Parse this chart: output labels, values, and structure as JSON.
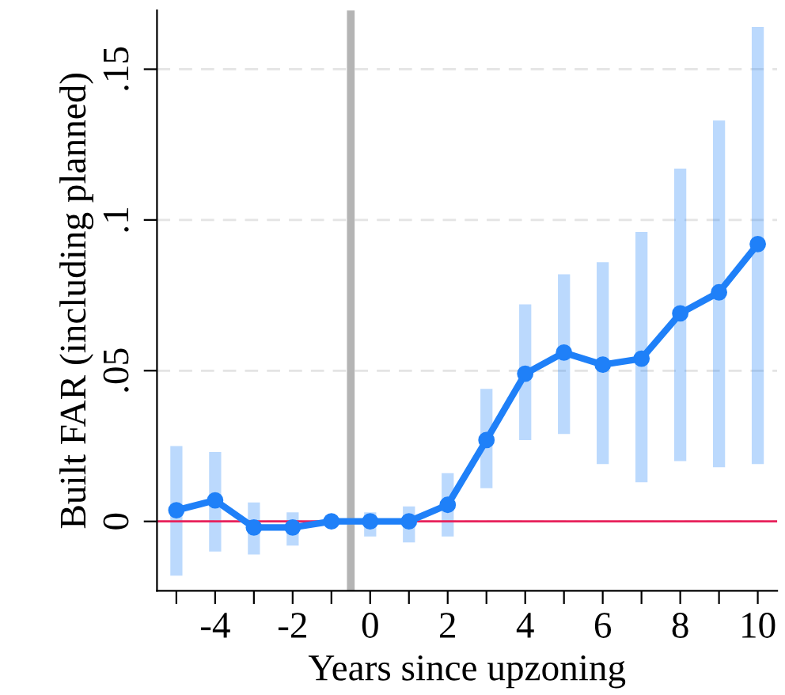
{
  "chart_data": {
    "type": "line",
    "xlabel": "Years since upzoning",
    "ylabel": "Built FAR (including planned)",
    "x": [
      -5,
      -4,
      -3,
      -2,
      -1,
      0,
      1,
      2,
      3,
      4,
      5,
      6,
      7,
      8,
      9,
      10
    ],
    "series": [
      {
        "color": "#1f80f8",
        "values": [
          0.0037,
          0.007,
          -0.002,
          -0.002,
          0,
          0,
          0,
          0.0055,
          0.027,
          0.049,
          0.056,
          0.052,
          0.054,
          0.069,
          0.076,
          0.092
        ],
        "errors": [
          [
            -0.018,
            0.025
          ],
          [
            -0.01,
            0.023
          ],
          [
            -0.011,
            0.0063
          ],
          [
            -0.008,
            0.003
          ],
          null,
          [
            -0.005,
            0.003
          ],
          [
            -0.007,
            0.005
          ],
          [
            -0.005,
            0.016
          ],
          [
            0.011,
            0.044
          ],
          [
            0.027,
            0.072
          ],
          [
            0.029,
            0.082
          ],
          [
            0.019,
            0.086
          ],
          [
            0.013,
            0.096
          ],
          [
            0.02,
            0.117
          ],
          [
            0.018,
            0.133
          ],
          [
            0.019,
            0.164
          ]
        ]
      }
    ],
    "xlim": [
      -5.5,
      10.5
    ],
    "ylim": [
      -0.023,
      0.1695
    ],
    "xticks": [
      {
        "value": -5,
        "label": null
      },
      -4,
      {
        "value": -3,
        "label": null
      },
      -2,
      {
        "value": -1,
        "label": null
      },
      0,
      {
        "value": 1,
        "label": null
      },
      2,
      {
        "value": 3,
        "label": null
      },
      4,
      {
        "value": 5,
        "label": null
      },
      6,
      {
        "value": 7,
        "label": null
      },
      8,
      {
        "value": 9,
        "label": null
      },
      10
    ],
    "yticks": [
      {
        "value": 0,
        "label": "0"
      },
      {
        "value": 0.05,
        "label": ".05"
      },
      {
        "value": 0.1,
        "label": ".1"
      },
      {
        "value": 0.15,
        "label": ".15"
      }
    ],
    "ref_lines": [
      {
        "axis": "x",
        "value": -0.5,
        "color": "#b4b4b4"
      },
      {
        "axis": "y",
        "value": 0,
        "color": "#e8205a"
      }
    ],
    "grid": "y",
    "marker": "circle",
    "line_style": "solid"
  }
}
